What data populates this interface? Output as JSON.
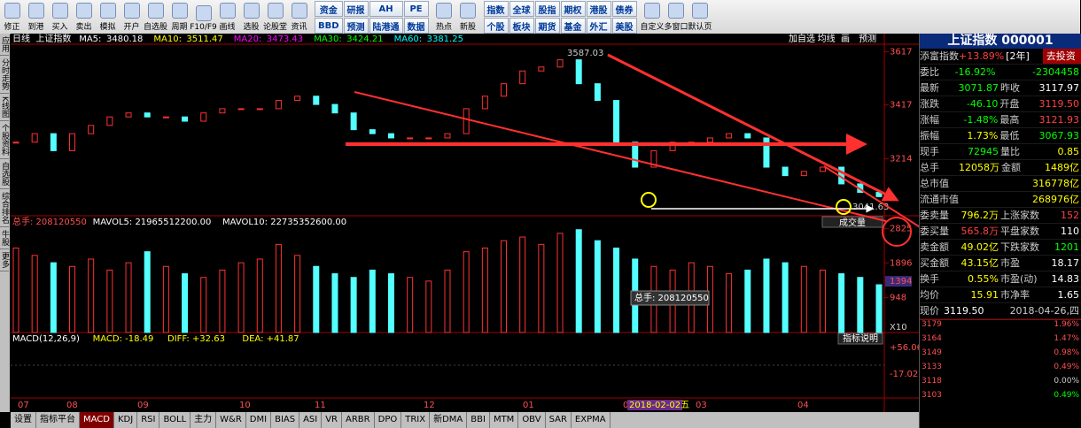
{
  "toolbar": {
    "icons1": [
      "修正",
      "到港",
      "买入",
      "卖出",
      "模拟",
      "开户",
      "自选股",
      "周期",
      "F10/F9",
      "画线",
      "选股",
      "论股堂",
      "资讯"
    ],
    "grid1": [
      [
        "资金",
        "研报",
        "AH",
        "PE"
      ],
      [
        "BBD",
        "预测",
        "陆港通",
        "数据"
      ]
    ],
    "icons2": [
      "热点",
      "新股"
    ],
    "grid2": [
      [
        "指数",
        "全球",
        "股指",
        "期权",
        "港股",
        "债券"
      ],
      [
        "个股",
        "板块",
        "期货",
        "基金",
        "外汇",
        "美股"
      ]
    ],
    "icons3": [
      "自定义",
      "多窗口",
      "默认页"
    ]
  },
  "side_tabs": [
    "应用",
    "分时走势",
    "K线图",
    "个股资料",
    "自选股",
    "综合排名",
    "牛股",
    "更多"
  ],
  "chart": {
    "period": "日线",
    "name": "上证指数",
    "ma": [
      {
        "label": "MA5:",
        "value": "3480.18",
        "color": "#ffffff"
      },
      {
        "label": "MA10:",
        "value": "3511.47",
        "color": "#ffff00"
      },
      {
        "label": "MA20:",
        "value": "3473.43",
        "color": "#ff00ff"
      },
      {
        "label": "MA30:",
        "value": "3424.21",
        "color": "#00ff00"
      },
      {
        "label": "MA60:",
        "value": "3381.25",
        "color": "#00ffff"
      }
    ],
    "tools": [
      "加自选",
      "均线",
      "画",
      "预测"
    ],
    "ylim": [
      3000,
      3639
    ],
    "yticks": [
      3617,
      3417,
      3214
    ],
    "high_label": "3587.03",
    "low_label": "3041.63",
    "closes": [
      3277,
      3309,
      3245,
      3309,
      3340,
      3372,
      3387,
      3372,
      3372,
      3356,
      3387,
      3403,
      3403,
      3403,
      3434,
      3450,
      3419,
      3387,
      3324,
      3309,
      3293,
      3293,
      3293,
      3309,
      3403,
      3450,
      3497,
      3545,
      3560,
      3587,
      3497,
      3434,
      3277,
      3183,
      3245,
      3277,
      3277,
      3293,
      3309,
      3293,
      3183,
      3151,
      3167,
      3183,
      3120,
      3088,
      3072
    ],
    "up_color": "#ff3232",
    "down_color": "#54ffff",
    "x_labels": [
      "07",
      "08",
      "09",
      "10",
      "11",
      "12",
      "01",
      "02",
      "03",
      "04"
    ],
    "highlight_date": "2018-02-02五"
  },
  "volume": {
    "header": [
      "总手: 208120550",
      "MAVOL5: 21965512200.00",
      "MAVOL10: 22735352600.00"
    ],
    "label": "成交量",
    "ylim": [
      0,
      2890
    ],
    "yticks": [
      2825,
      1896,
      1394,
      948
    ],
    "unit": "X10",
    "tooltip": "总手: 208120550",
    "values": [
      2300,
      2100,
      1900,
      1800,
      2000,
      1700,
      1900,
      2200,
      1800,
      1600,
      1500,
      1700,
      1900,
      2000,
      2400,
      2100,
      1800,
      1600,
      1500,
      1700,
      1600,
      1500,
      1400,
      1700,
      2200,
      2300,
      2500,
      2600,
      2400,
      2700,
      2800,
      2500,
      2300,
      2000,
      1800,
      1700,
      1900,
      1800,
      1600,
      1700,
      2000,
      1900,
      1800,
      1700,
      1600,
      1500,
      1300
    ]
  },
  "macd": {
    "header": [
      "MACD(12,26,9)",
      "MACD: -18.49",
      "DIFF: +32.63",
      "DEA: +41.87"
    ],
    "help": "指标说明",
    "ticks": [
      "+56.06",
      "-17.02"
    ]
  },
  "tabs": [
    "设置",
    "指标平台",
    "MACD",
    "KDJ",
    "RSI",
    "BOLL",
    "主力",
    "W&R",
    "DMI",
    "BIAS",
    "ASI",
    "VR",
    "ARBR",
    "DPO",
    "TRIX",
    "新DMA",
    "BBI",
    "MTM",
    "OBV",
    "SAR",
    "EXPMA"
  ],
  "active_tab": "MACD",
  "quote": {
    "title": "上证指数 000001",
    "fund": [
      "添富指数",
      "+13.89%",
      "[2年]",
      "去投资"
    ],
    "rows": [
      {
        "cells": [
          "委比",
          "-16.92%",
          "",
          "-2304458"
        ],
        "colors": [
          "#ccc",
          "#00ff00",
          "#ccc",
          "#00ff00"
        ]
      },
      {
        "cells": [
          "最新",
          "3071.87",
          "昨收",
          "3117.97"
        ],
        "colors": [
          "#ccc",
          "#00ff00",
          "#ccc",
          "#ffffff"
        ]
      },
      {
        "cells": [
          "涨跌",
          "-46.10",
          "开盘",
          "3119.50"
        ],
        "colors": [
          "#ccc",
          "#00ff00",
          "#ccc",
          "#ff4040"
        ]
      },
      {
        "cells": [
          "涨幅",
          "-1.48%",
          "最高",
          "3121.93"
        ],
        "colors": [
          "#ccc",
          "#00ff00",
          "#ccc",
          "#ff4040"
        ]
      },
      {
        "cells": [
          "振幅",
          "1.73%",
          "最低",
          "3067.93"
        ],
        "colors": [
          "#ccc",
          "#ffff00",
          "#ccc",
          "#00ff00"
        ]
      },
      {
        "cells": [
          "现手",
          "72945",
          "量比",
          "0.85"
        ],
        "colors": [
          "#ccc",
          "#00ff00",
          "#ccc",
          "#ffff00"
        ]
      },
      {
        "cells": [
          "总手",
          "12058万",
          "金额",
          "1489亿"
        ],
        "colors": [
          "#ccc",
          "#ffff00",
          "#ccc",
          "#ffff00"
        ]
      },
      {
        "cells": [
          "总市值",
          "",
          "",
          "316778亿"
        ],
        "colors": [
          "#ccc",
          "#ccc",
          "#ccc",
          "#ffff00"
        ]
      },
      {
        "cells": [
          "流通市值",
          "",
          "",
          "268976亿"
        ],
        "colors": [
          "#ccc",
          "#ccc",
          "#ccc",
          "#ffff00"
        ]
      },
      {
        "cells": [
          "委卖量",
          "796.2万",
          "上涨家数",
          "152"
        ],
        "colors": [
          "#ccc",
          "#ffff00",
          "#ccc",
          "#ff4040"
        ]
      },
      {
        "cells": [
          "委买量",
          "565.8万",
          "平盘家数",
          "110"
        ],
        "colors": [
          "#ccc",
          "#ff4040",
          "#ccc",
          "#ffffff"
        ]
      },
      {
        "cells": [
          "卖金额",
          "49.02亿",
          "下跌家数",
          "1201"
        ],
        "colors": [
          "#ccc",
          "#ffff00",
          "#ccc",
          "#00ff00"
        ]
      },
      {
        "cells": [
          "买金额",
          "43.15亿",
          "市盈",
          "18.17"
        ],
        "colors": [
          "#ccc",
          "#ffff00",
          "#ccc",
          "#ffffff"
        ]
      },
      {
        "cells": [
          "换手",
          "0.55%",
          "市盈(动)",
          "14.83"
        ],
        "colors": [
          "#ccc",
          "#ffff00",
          "#ccc",
          "#ffffff"
        ]
      },
      {
        "cells": [
          "均价",
          "15.91",
          "市净率",
          "1.65"
        ],
        "colors": [
          "#ccc",
          "#ffff00",
          "#ccc",
          "#ffffff"
        ]
      },
      {
        "cells": [
          "现价",
          "3119.50",
          "",
          "2018-04-26,四"
        ],
        "colors": [
          "#ccc",
          "#ffffff",
          "#ccc",
          "#ccc"
        ]
      }
    ],
    "mini_left": [
      "3179",
      "3164",
      "3149",
      "3133",
      "3118",
      "3103"
    ],
    "mini_right": [
      "1.96%",
      "1.47%",
      "0.98%",
      "0.49%",
      "0.00%",
      "0.49%"
    ]
  }
}
